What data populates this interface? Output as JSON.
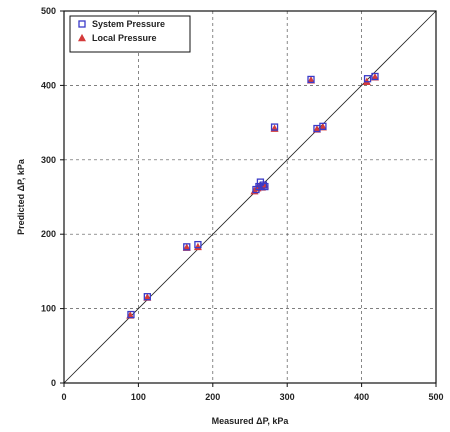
{
  "chart_data": {
    "type": "scatter",
    "xlabel": "Measured ΔP, kPa",
    "ylabel": "Predicted ΔP, kPa",
    "xlim": [
      0,
      500
    ],
    "ylim": [
      0,
      500
    ],
    "x_ticks": [
      "0",
      "100",
      "200",
      "300",
      "400",
      "500"
    ],
    "y_ticks": [
      "0",
      "100",
      "200",
      "300",
      "400",
      "500"
    ],
    "grid": true,
    "legend_position": "top-left",
    "reference_line": "y = x",
    "series": [
      {
        "name": "System Pressure",
        "marker": "square",
        "color": "#3a3ac8",
        "points": [
          [
            90,
            92
          ],
          [
            112,
            116
          ],
          [
            165,
            183
          ],
          [
            180,
            186
          ],
          [
            258,
            260
          ],
          [
            262,
            264
          ],
          [
            264,
            270
          ],
          [
            268,
            266
          ],
          [
            270,
            264
          ],
          [
            283,
            344
          ],
          [
            340,
            342
          ],
          [
            348,
            345
          ],
          [
            332,
            408
          ],
          [
            408,
            409
          ],
          [
            418,
            412
          ]
        ]
      },
      {
        "name": "Local Pressure",
        "marker": "triangle",
        "color": "#d43a3a",
        "points": [
          [
            89,
            91
          ],
          [
            112,
            115
          ],
          [
            165,
            182
          ],
          [
            180,
            183
          ],
          [
            256,
            258
          ],
          [
            260,
            262
          ],
          [
            263,
            265
          ],
          [
            266,
            263
          ],
          [
            270,
            266
          ],
          [
            283,
            342
          ],
          [
            340,
            341
          ],
          [
            348,
            344
          ],
          [
            332,
            407
          ],
          [
            407,
            405
          ],
          [
            418,
            411
          ]
        ]
      }
    ]
  }
}
